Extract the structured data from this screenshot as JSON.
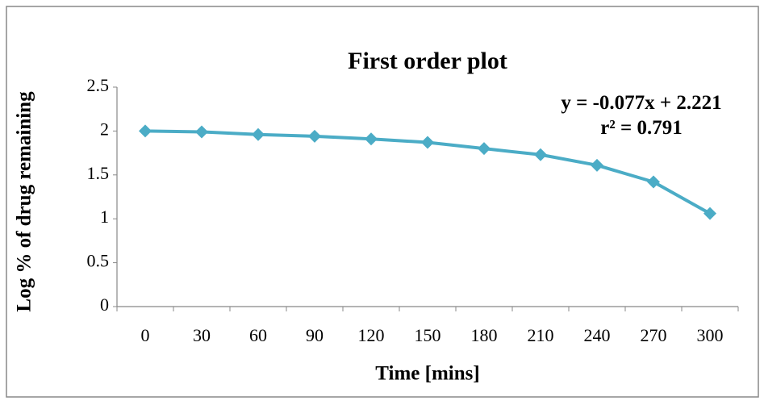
{
  "chart_data": {
    "type": "line",
    "title": "First order plot",
    "x_label": "Time [mins]",
    "y_label": "Log % of drug remaining",
    "categories": [
      "0",
      "30",
      "60",
      "90",
      "120",
      "150",
      "180",
      "210",
      "240",
      "270",
      "300"
    ],
    "values": [
      2.0,
      1.99,
      1.96,
      1.94,
      1.91,
      1.87,
      1.8,
      1.73,
      1.61,
      1.42,
      1.06
    ],
    "color": "#4bacc6",
    "ylim": [
      0,
      2.5
    ],
    "yticks": [
      0,
      0.5,
      1,
      1.5,
      2,
      2.5
    ],
    "grid": false,
    "annotations": [
      "y = -0.077x + 2.221",
      "r² = 0.791"
    ]
  }
}
